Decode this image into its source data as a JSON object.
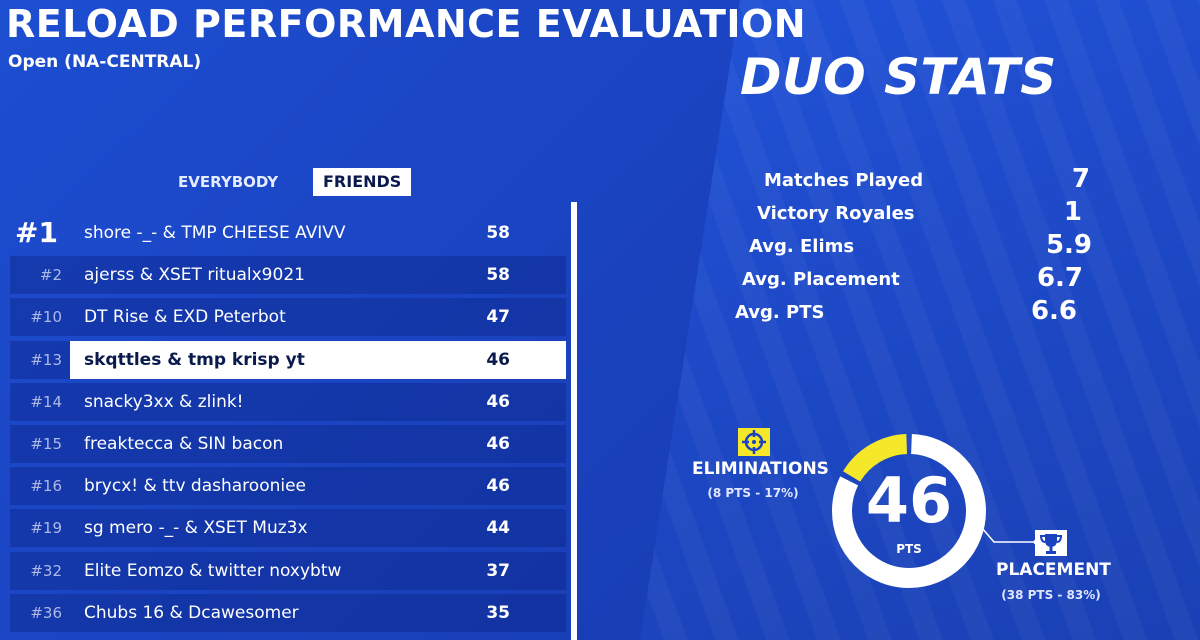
{
  "header": {
    "title": "RELOAD PERFORMANCE EVALUATION",
    "subtitle": "Open (NA-CENTRAL)"
  },
  "tabs": {
    "everybody": "EVERYBODY",
    "friends": "FRIENDS",
    "active": "friends"
  },
  "leaderboard": [
    {
      "rank": "#1",
      "name": "shore -_- & TMP CHEESE AVIVV",
      "points": "58"
    },
    {
      "rank": "#2",
      "name": "ajerss & XSET ritualx9021",
      "points": "58"
    },
    {
      "rank": "#10",
      "name": "DT Rise & EXD Peterbot",
      "points": "47"
    },
    {
      "rank": "#13",
      "name": "skqttles & tmp krisp yt",
      "points": "46",
      "highlighted": true
    },
    {
      "rank": "#14",
      "name": "snacky3xx & zlink!",
      "points": "46"
    },
    {
      "rank": "#15",
      "name": "freaktecca & SIN bacon",
      "points": "46"
    },
    {
      "rank": "#16",
      "name": "brycx! & ttv dasharooniee",
      "points": "46"
    },
    {
      "rank": "#19",
      "name": "sg mero -_- & XSET Muz3x",
      "points": "44"
    },
    {
      "rank": "#32",
      "name": "Elite Eomzo & twitter noxybtw",
      "points": "37"
    },
    {
      "rank": "#36",
      "name": "Chubs 16 & Dcawesomer",
      "points": "35"
    }
  ],
  "duo_stats": {
    "title": "DUO STATS",
    "stats": [
      {
        "label": "Matches Played",
        "value": "7"
      },
      {
        "label": "Victory Royales",
        "value": "1"
      },
      {
        "label": "Avg. Elims",
        "value": "5.9"
      },
      {
        "label": "Avg. Placement",
        "value": "6.7"
      },
      {
        "label": "Avg. PTS",
        "value": "6.6"
      }
    ]
  },
  "points_breakdown": {
    "total": "46",
    "unit": "PTS",
    "eliminations": {
      "label": "ELIMINATIONS",
      "detail": "(8 PTS - 17%)",
      "fraction": 0.17,
      "icon": "crosshair-icon"
    },
    "placement": {
      "label": "PLACEMENT",
      "detail": "(38 PTS - 83%)",
      "fraction": 0.83,
      "icon": "trophy-icon"
    }
  },
  "colors": {
    "background": "#1d4ed1",
    "elims_segment": "#f5e829",
    "placement_segment": "#ffffff",
    "highlight_row": "#ffffff"
  }
}
